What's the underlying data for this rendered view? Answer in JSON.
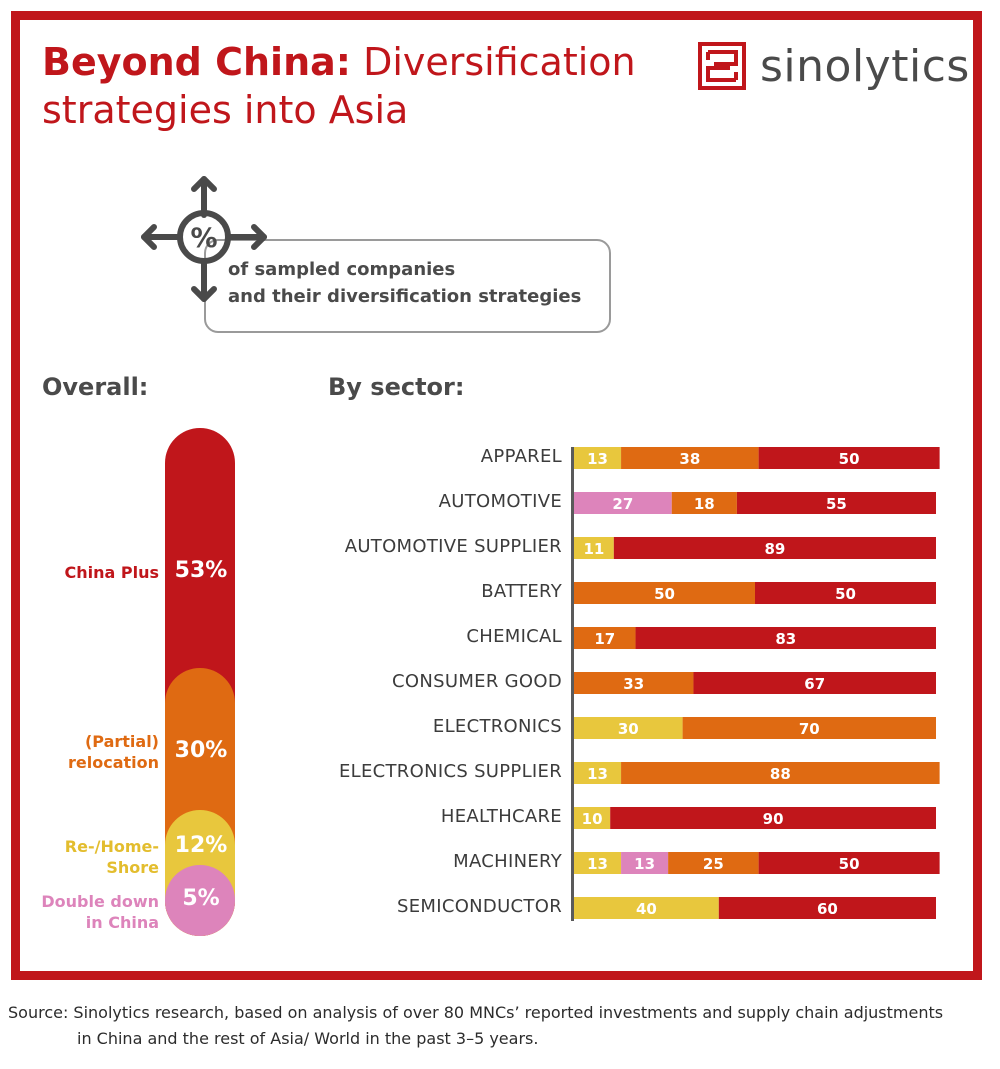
{
  "title": {
    "bold": "Beyond China:",
    "rest_line1": "Diversification",
    "line2": "strategies into Asia"
  },
  "logo": {
    "text": "sinolytics",
    "icon": "maze-square-icon"
  },
  "legend": {
    "symbol": "%",
    "line1": "of sampled companies",
    "line2": "and their diversification strategies"
  },
  "headings": {
    "overall": "Overall:",
    "by_sector": "By sector:"
  },
  "colors": {
    "china_plus": "#c0161b",
    "relocation": "#df6a12",
    "reshore": "#e8c73d",
    "double_down": "#dd84bb",
    "frame": "#c0161b"
  },
  "overall": [
    {
      "label_line1": "China Plus",
      "label_line2": "",
      "pct_label": "53%",
      "value": 53,
      "color": "#c0161b"
    },
    {
      "label_line1": "(Partial)",
      "label_line2": "relocation",
      "pct_label": "30%",
      "value": 30,
      "color": "#df6a12"
    },
    {
      "label_line1": "Re-/Home-",
      "label_line2": "Shore",
      "pct_label": "12%",
      "value": 12,
      "color": "#e8c73d"
    },
    {
      "label_line1": "Double down",
      "label_line2": "in China",
      "pct_label": "5%",
      "value": 5,
      "color": "#dd84bb"
    }
  ],
  "chart_data": {
    "type": "bar",
    "stacked": true,
    "orientation": "horizontal",
    "categories": [
      "APPAREL",
      "AUTOMOTIVE",
      "AUTOMOTIVE SUPPLIER",
      "BATTERY",
      "CHEMICAL",
      "CONSUMER GOOD",
      "ELECTRONICS",
      "ELECTRONICS SUPPLIER",
      "HEALTHCARE",
      "MACHINERY",
      "SEMICONDUCTOR"
    ],
    "series": [
      {
        "name": "Re-/Home-Shore",
        "color": "#e8c73d",
        "values": [
          13,
          0,
          11,
          0,
          0,
          0,
          30,
          13,
          10,
          13,
          40
        ]
      },
      {
        "name": "Double down in China",
        "color": "#dd84bb",
        "values": [
          0,
          27,
          0,
          0,
          0,
          0,
          0,
          0,
          0,
          13,
          0
        ]
      },
      {
        "name": "(Partial) relocation",
        "color": "#df6a12",
        "values": [
          38,
          18,
          0,
          50,
          17,
          33,
          70,
          88,
          0,
          25,
          0
        ]
      },
      {
        "name": "China Plus",
        "color": "#c0161b",
        "values": [
          50,
          55,
          89,
          50,
          83,
          67,
          0,
          0,
          90,
          50,
          60
        ]
      }
    ],
    "xlim": [
      0,
      100
    ]
  },
  "source": {
    "line1": "Source: Sinolytics research, based on analysis of over 80 MNCs’ reported investments and supply chain adjustments",
    "line2": "in China and the rest of Asia/ World in the past 3–5 years."
  }
}
